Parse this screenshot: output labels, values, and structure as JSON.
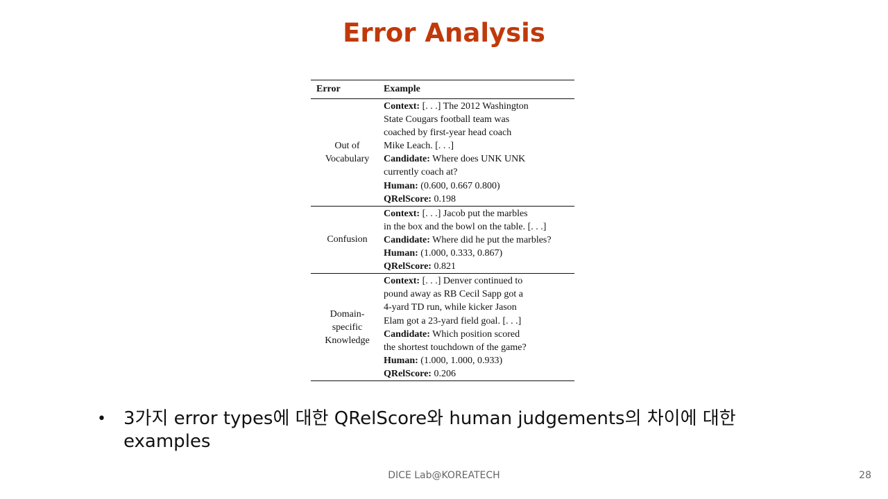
{
  "slide": {
    "title": "Error Analysis",
    "bullet": "3가지 error types에 대한 QRelScore와 human judgements의 차이에 대한 examples",
    "footer": "DICE Lab@KOREATECH",
    "page_number": "28",
    "title_color": "#c0390b"
  },
  "table": {
    "headers": [
      "Error",
      "Example"
    ],
    "rows": [
      {
        "error": "Out of Vocabulary",
        "context_label": "Context:",
        "context": [
          "[. . .] The 2012 Washington",
          "State Cougars football team was",
          "coached by first-year head coach",
          "Mike Leach. [. . .]"
        ],
        "candidate_label": "Candidate:",
        "candidate": [
          "Where does UNK UNK",
          "currently coach at?"
        ],
        "human_label": "Human:",
        "human": "(0.600, 0.667 0.800)",
        "score_label": "QRelScore:",
        "score": "0.198"
      },
      {
        "error": "Confusion",
        "context_label": "Context:",
        "context": [
          "[. . .] Jacob put the marbles",
          "in the box and the bowl on the table. [. . .]"
        ],
        "candidate_label": "Candidate:",
        "candidate": [
          "Where did he put the marbles?"
        ],
        "human_label": "Human:",
        "human": "(1.000, 0.333, 0.867)",
        "score_label": "QRelScore:",
        "score": "0.821"
      },
      {
        "error": "Domain-specific Knowledge",
        "context_label": "Context:",
        "context": [
          "[. . .] Denver continued to",
          "pound away as RB Cecil Sapp got a",
          "4-yard TD run, while kicker Jason",
          "Elam got a 23-yard field goal. [. . .]"
        ],
        "candidate_label": "Candidate:",
        "candidate": [
          "Which position scored",
          "the shortest touchdown of the game?"
        ],
        "human_label": "Human:",
        "human": "(1.000, 1.000, 0.933)",
        "score_label": "QRelScore:",
        "score": "0.206"
      }
    ]
  }
}
